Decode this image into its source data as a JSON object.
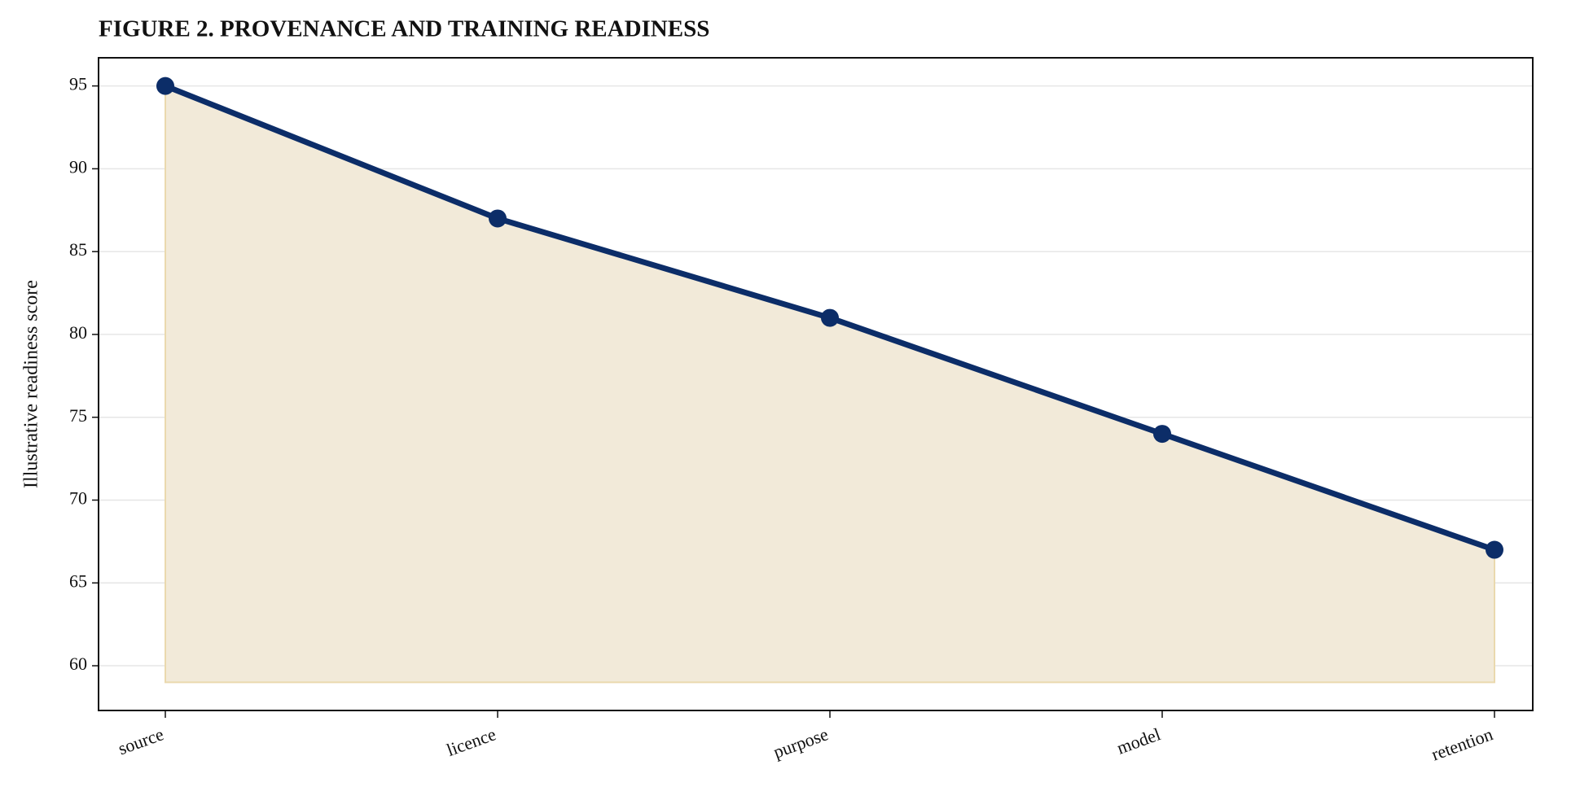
{
  "chart_data": {
    "type": "line",
    "title": "FIGURE 2. PROVENANCE AND TRAINING READINESS",
    "y_label": "Illustrative readiness score",
    "categories": [
      "source",
      "licence",
      "purpose",
      "model",
      "retention"
    ],
    "series": [
      {
        "name": "Illustrative readiness score",
        "color": "#0c2d68",
        "values": [
          95,
          87,
          81,
          74,
          67
        ]
      }
    ],
    "fill_color": "#f2ead9",
    "fill_to": 59,
    "ylim": [
      57.3,
      96.7
    ],
    "yticks": [
      60,
      65,
      70,
      75,
      80,
      85,
      90,
      95
    ],
    "grid": true
  }
}
